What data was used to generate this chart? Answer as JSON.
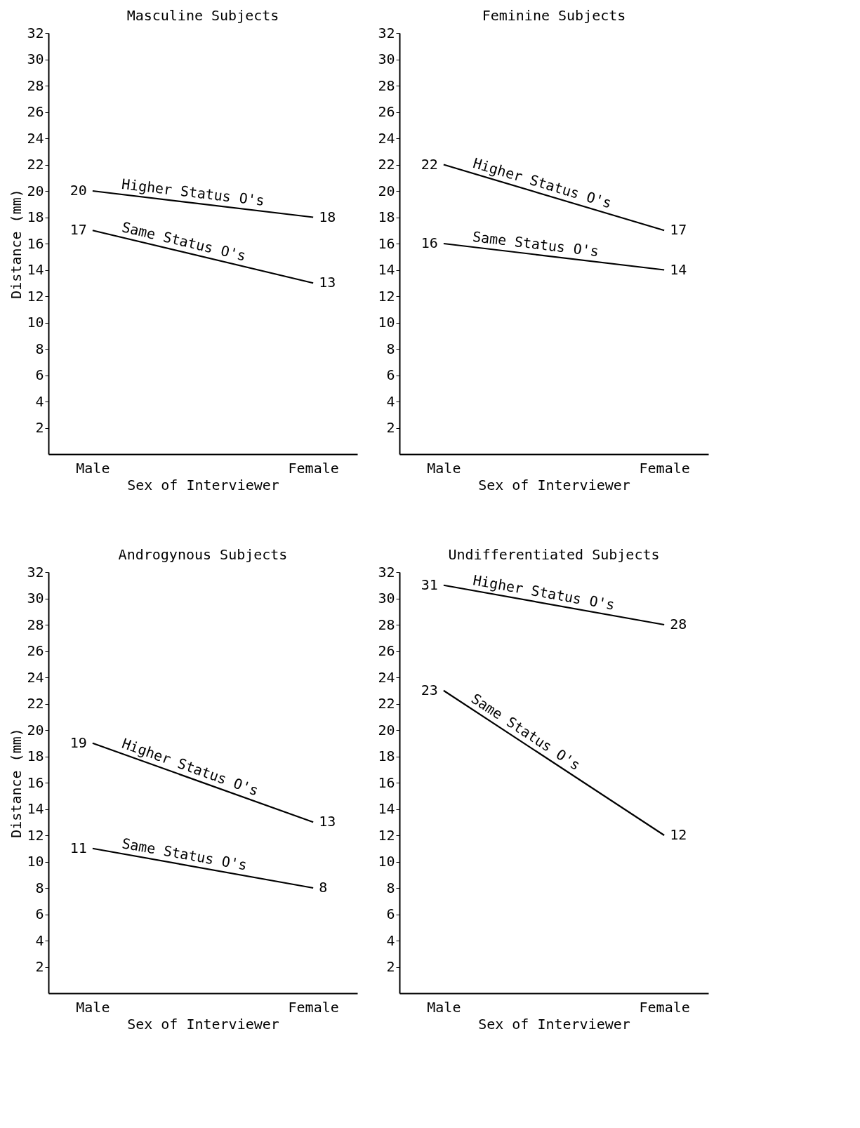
{
  "chart_data": [
    {
      "type": "line",
      "title": "Masculine Subjects",
      "xlabel": "Sex of Interviewer",
      "ylabel": "Distance (mm)",
      "categories": [
        "Male",
        "Female"
      ],
      "ylim": [
        0,
        32
      ],
      "yticks": [
        2,
        4,
        6,
        8,
        10,
        12,
        14,
        16,
        18,
        20,
        22,
        24,
        26,
        28,
        30,
        32
      ],
      "grid": false,
      "legend": false,
      "marker": "none",
      "data_labels": true,
      "series": [
        {
          "name": "Higher Status O's",
          "color": "#000000",
          "values": [
            20,
            18
          ]
        },
        {
          "name": "Same Status O's",
          "color": "#000000",
          "values": [
            17,
            13
          ]
        }
      ]
    },
    {
      "type": "line",
      "title": "Feminine Subjects",
      "xlabel": "Sex of Interviewer",
      "categories": [
        "Male",
        "Female"
      ],
      "ylim": [
        0,
        32
      ],
      "yticks": [
        2,
        4,
        6,
        8,
        10,
        12,
        14,
        16,
        18,
        20,
        22,
        24,
        26,
        28,
        30,
        32
      ],
      "grid": false,
      "legend": false,
      "marker": "none",
      "data_labels": true,
      "series": [
        {
          "name": "Higher Status O's",
          "color": "#000000",
          "values": [
            22,
            17
          ]
        },
        {
          "name": "Same Status O's",
          "color": "#000000",
          "values": [
            16,
            14
          ]
        }
      ]
    },
    {
      "type": "line",
      "title": "Androgynous Subjects",
      "xlabel": "Sex of Interviewer",
      "ylabel": "Distance (mm)",
      "categories": [
        "Male",
        "Female"
      ],
      "ylim": [
        0,
        32
      ],
      "yticks": [
        2,
        4,
        6,
        8,
        10,
        12,
        14,
        16,
        18,
        20,
        22,
        24,
        26,
        28,
        30,
        32
      ],
      "grid": false,
      "legend": false,
      "marker": "none",
      "data_labels": true,
      "series": [
        {
          "name": "Higher Status O's",
          "color": "#000000",
          "values": [
            19,
            13
          ]
        },
        {
          "name": "Same Status O's",
          "color": "#000000",
          "values": [
            11,
            8
          ]
        }
      ]
    },
    {
      "type": "line",
      "title": "Undifferentiated Subjects",
      "xlabel": "Sex of Interviewer",
      "categories": [
        "Male",
        "Female"
      ],
      "ylim": [
        0,
        32
      ],
      "yticks": [
        2,
        4,
        6,
        8,
        10,
        12,
        14,
        16,
        18,
        20,
        22,
        24,
        26,
        28,
        30,
        32
      ],
      "grid": false,
      "legend": false,
      "marker": "none",
      "data_labels": true,
      "series": [
        {
          "name": "Higher Status O's",
          "color": "#000000",
          "values": [
            31,
            28
          ]
        },
        {
          "name": "Same Status O's",
          "color": "#000000",
          "values": [
            23,
            12
          ]
        }
      ]
    }
  ]
}
